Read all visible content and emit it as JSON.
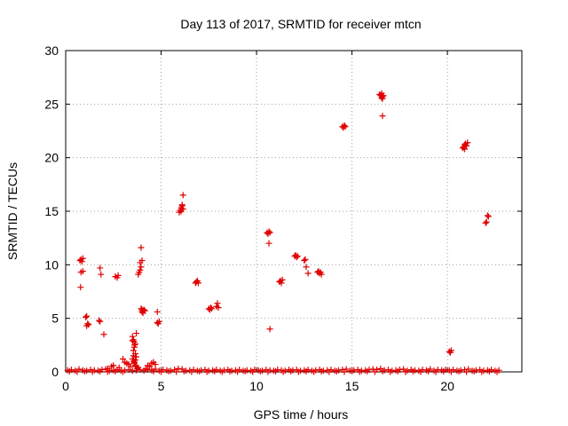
{
  "chart_data": {
    "type": "scatter",
    "title": "Day 113 of 2017, SRMTID for receiver mtcn",
    "xlabel": "GPS time / hours",
    "ylabel": "SRMTID / TECUs",
    "xlim": [
      0,
      23.9
    ],
    "ylim": [
      0,
      30
    ],
    "xticks": [
      0,
      5,
      10,
      15,
      20
    ],
    "yticks": [
      0,
      5,
      10,
      15,
      20,
      25,
      30
    ],
    "grid": true,
    "marker": "plus",
    "color": "#e00000",
    "series": [
      {
        "x": [
          0.75,
          0.8,
          0.85,
          0.9,
          0.8,
          0.9,
          0.78,
          1.05,
          1.1,
          1.15,
          1.1,
          1.2,
          1.8,
          1.85,
          1.75,
          1.8,
          2.0,
          2.6,
          2.7,
          2.75,
          3.5,
          3.55,
          3.6,
          3.65,
          3.7,
          3.6,
          3.55,
          3.65,
          3.7,
          3.5,
          3.55,
          3.6,
          3.65,
          3.7,
          3.75,
          3.6,
          3.55,
          3.65,
          3.5,
          3.6,
          3.8,
          3.85,
          3.9,
          3.95,
          3.9,
          4.0,
          3.95,
          4.0,
          4.05,
          3.95,
          4.0,
          4.1,
          4.05,
          4.15,
          4.8,
          4.85,
          4.9,
          4.8,
          5.95,
          6.0,
          6.05,
          6.1,
          6.15,
          6.1,
          6.05,
          6.15,
          6.8,
          6.85,
          6.9,
          6.95,
          7.5,
          7.55,
          7.6,
          7.65,
          7.9,
          7.95,
          8.0,
          10.55,
          10.6,
          10.65,
          10.7,
          10.65,
          10.7,
          11.2,
          11.25,
          11.3,
          11.35,
          12.0,
          12.05,
          12.1,
          12.15,
          12.5,
          12.55,
          12.6,
          12.7,
          13.2,
          13.25,
          13.3,
          13.35,
          13.4,
          14.5,
          14.55,
          14.6,
          14.65,
          16.45,
          16.5,
          16.55,
          16.6,
          16.55,
          16.6,
          16.65,
          16.6,
          20.1,
          20.15,
          20.2,
          20.8,
          20.85,
          20.9,
          20.95,
          21.0,
          21.05,
          20.9,
          22.0,
          22.05,
          22.1,
          22.15,
          2.2,
          2.4,
          2.5,
          2.8,
          3.0,
          3.1,
          3.2,
          3.3,
          3.4,
          3.8,
          4.2,
          4.3,
          4.4,
          4.5,
          4.6,
          4.7,
          0.1,
          0.3,
          0.5,
          0.7,
          0.9,
          1.1,
          1.3,
          1.5,
          1.7,
          1.9,
          2.1,
          2.3,
          2.5,
          2.7,
          2.9,
          3.1,
          3.3,
          3.5,
          3.7,
          3.9,
          4.1,
          4.3,
          4.5,
          4.7,
          4.9,
          5.1,
          5.3,
          5.5,
          5.7,
          5.9,
          6.1,
          6.3,
          6.5,
          6.7,
          6.9,
          7.1,
          7.3,
          7.5,
          7.7,
          7.9,
          8.1,
          8.3,
          8.5,
          8.7,
          8.9,
          9.1,
          9.3,
          9.5,
          9.7,
          9.9,
          10.1,
          10.3,
          10.5,
          10.7,
          10.9,
          11.1,
          11.3,
          11.5,
          11.7,
          11.9,
          12.1,
          12.3,
          12.5,
          12.7,
          12.9,
          13.1,
          13.3,
          13.5,
          13.7,
          13.9,
          14.1,
          14.3,
          14.5,
          14.7,
          14.9,
          15.1,
          15.3,
          15.5,
          15.7,
          15.9,
          16.1,
          16.3,
          16.5,
          16.7,
          16.9,
          17.1,
          17.3,
          17.5,
          17.7,
          17.9,
          18.1,
          18.3,
          18.5,
          18.7,
          18.9,
          19.1,
          19.3,
          19.5,
          19.7,
          19.9,
          20.1,
          20.3,
          20.5,
          20.7,
          20.9,
          21.1,
          21.3,
          21.5,
          21.7,
          21.9,
          22.1,
          22.3,
          22.5,
          22.7,
          0.2,
          0.6,
          1.0,
          1.4,
          1.8,
          2.2,
          2.6,
          3.0,
          4.6,
          5.0,
          5.4,
          5.8,
          6.2,
          6.6,
          7.0,
          7.4,
          7.8,
          8.2,
          8.6,
          9.0,
          9.4,
          9.8,
          10.2,
          10.6,
          11.0,
          11.4,
          11.8,
          12.2,
          12.6,
          13.0,
          13.4,
          13.8,
          14.2,
          14.6,
          15.0,
          15.4,
          15.8,
          16.2,
          16.6,
          17.0,
          17.4,
          17.8,
          18.2,
          18.6,
          19.0,
          19.4,
          19.8,
          20.2,
          20.6,
          21.0,
          21.4,
          21.8,
          22.2,
          22.6
        ],
        "y": [
          10.4,
          10.5,
          10.3,
          10.6,
          9.3,
          9.4,
          7.9,
          5.1,
          5.2,
          4.5,
          4.3,
          4.4,
          9.7,
          9.1,
          4.8,
          4.7,
          3.5,
          8.9,
          8.8,
          9.0,
          3.3,
          3.0,
          2.8,
          2.6,
          3.6,
          2.3,
          2.0,
          1.7,
          1.4,
          1.2,
          1.0,
          0.8,
          0.6,
          0.5,
          0.3,
          2.5,
          1.5,
          1.1,
          2.9,
          0.9,
          9.1,
          9.3,
          9.5,
          9.8,
          10.2,
          10.4,
          11.6,
          5.8,
          5.7,
          5.9,
          5.6,
          5.8,
          5.5,
          5.7,
          4.6,
          4.5,
          4.7,
          5.6,
          14.9,
          15.1,
          15.3,
          15.5,
          15.2,
          15.6,
          15.0,
          16.5,
          8.3,
          8.4,
          8.5,
          8.3,
          5.9,
          5.8,
          6.0,
          5.9,
          6.1,
          6.4,
          6.0,
          13.0,
          12.9,
          13.1,
          13.0,
          12.0,
          4.0,
          8.4,
          8.5,
          8.3,
          8.6,
          10.8,
          10.9,
          10.7,
          10.8,
          10.4,
          10.5,
          9.8,
          9.2,
          9.3,
          9.4,
          9.2,
          9.3,
          9.1,
          22.9,
          22.8,
          23.0,
          22.9,
          25.9,
          25.8,
          26.0,
          25.7,
          25.6,
          25.5,
          25.8,
          23.9,
          1.9,
          1.8,
          2.0,
          20.9,
          21.0,
          21.2,
          21.3,
          21.1,
          21.4,
          20.8,
          13.9,
          14.0,
          14.6,
          14.5,
          0.3,
          0.5,
          0.6,
          0.4,
          1.2,
          0.9,
          0.8,
          0.7,
          0.5,
          0.4,
          0.3,
          0.6,
          0.5,
          0.8,
          0.9,
          0.7,
          0.15,
          0.2,
          0.1,
          0.25,
          0.15,
          0.1,
          0.2,
          0.15,
          0.1,
          0.2,
          0.25,
          0.1,
          0.15,
          0.2,
          0.1,
          0.15,
          0.2,
          0.1,
          0.15,
          0.2,
          0.1,
          0.2,
          0.15,
          0.25,
          0.1,
          0.2,
          0.15,
          0.1,
          0.2,
          0.3,
          0.25,
          0.1,
          0.15,
          0.2,
          0.1,
          0.15,
          0.2,
          0.1,
          0.15,
          0.2,
          0.1,
          0.15,
          0.2,
          0.1,
          0.15,
          0.2,
          0.1,
          0.15,
          0.1,
          0.2,
          0.15,
          0.1,
          0.2,
          0.15,
          0.1,
          0.2,
          0.15,
          0.1,
          0.2,
          0.15,
          0.2,
          0.1,
          0.15,
          0.2,
          0.1,
          0.15,
          0.2,
          0.1,
          0.15,
          0.2,
          0.1,
          0.15,
          0.2,
          0.25,
          0.1,
          0.15,
          0.2,
          0.1,
          0.15,
          0.2,
          0.25,
          0.2,
          0.3,
          0.15,
          0.2,
          0.1,
          0.15,
          0.2,
          0.25,
          0.1,
          0.2,
          0.15,
          0.1,
          0.2,
          0.15,
          0.25,
          0.1,
          0.2,
          0.15,
          0.2,
          0.15,
          0.2,
          0.1,
          0.15,
          0.2,
          0.25,
          0.1,
          0.15,
          0.2,
          0.1,
          0.15,
          0.2,
          0.1,
          0.15,
          0.05,
          0.0,
          0.05,
          0.0,
          0.05,
          0.0,
          0.05,
          0.0,
          0.05,
          0.0,
          0.05,
          0.0,
          0.05,
          0.0,
          0.05,
          0.0,
          0.05,
          0.0,
          0.05,
          0.0,
          0.05,
          0.0,
          0.05,
          0.0,
          0.05,
          0.0,
          0.05,
          0.0,
          0.05,
          0.0,
          0.05,
          0.0,
          0.05,
          0.0,
          0.05,
          0.0,
          0.05,
          0.0,
          0.05,
          0.0,
          0.05,
          0.0,
          0.05,
          0.0,
          0.05,
          0.0,
          0.05,
          0.0,
          0.05,
          0.0,
          0.05,
          0.0,
          0.05,
          0.0
        ]
      }
    ]
  }
}
